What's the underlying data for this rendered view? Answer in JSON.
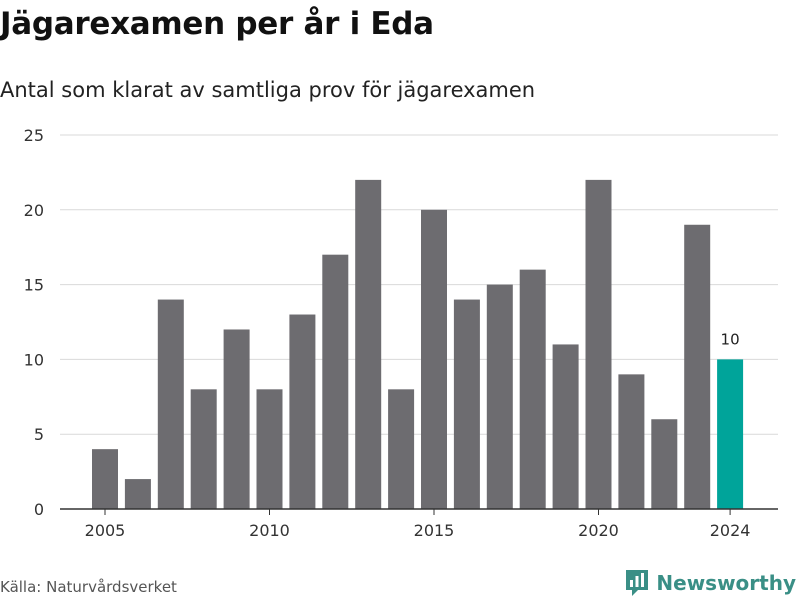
{
  "header": {
    "title": "Jägarexamen per år i Eda",
    "subtitle": "Antal som klarat av samtliga prov för jägarexamen"
  },
  "footer": {
    "source": "Källa: Naturvårdsverket",
    "brand": "Newsworthy",
    "brand_icon": "bar-chart-logo-icon"
  },
  "colors": {
    "bar": "#6d6c70",
    "highlight": "#00a49a",
    "grid": "#d9d9d9",
    "axis": "#333333",
    "brand": "#3a8f86"
  },
  "chart_data": {
    "type": "bar",
    "title": "Jägarexamen per år i Eda",
    "subtitle": "Antal som klarat av samtliga prov för jägarexamen",
    "x": [
      2005,
      2006,
      2007,
      2008,
      2009,
      2010,
      2011,
      2012,
      2013,
      2014,
      2015,
      2016,
      2017,
      2018,
      2019,
      2020,
      2021,
      2022,
      2023,
      2024
    ],
    "values": [
      4,
      2,
      14,
      8,
      12,
      8,
      13,
      17,
      22,
      8,
      20,
      14,
      15,
      16,
      11,
      22,
      9,
      6,
      19,
      10
    ],
    "x_tick_labels": [
      "2005",
      "2010",
      "2015",
      "2020",
      "2024"
    ],
    "y_ticks": [
      0,
      5,
      10,
      15,
      20,
      25
    ],
    "ylim": [
      0,
      25
    ],
    "highlight": {
      "x": 2024,
      "label": "10"
    },
    "grid": true,
    "legend": "none",
    "xlabel": "",
    "ylabel": ""
  }
}
